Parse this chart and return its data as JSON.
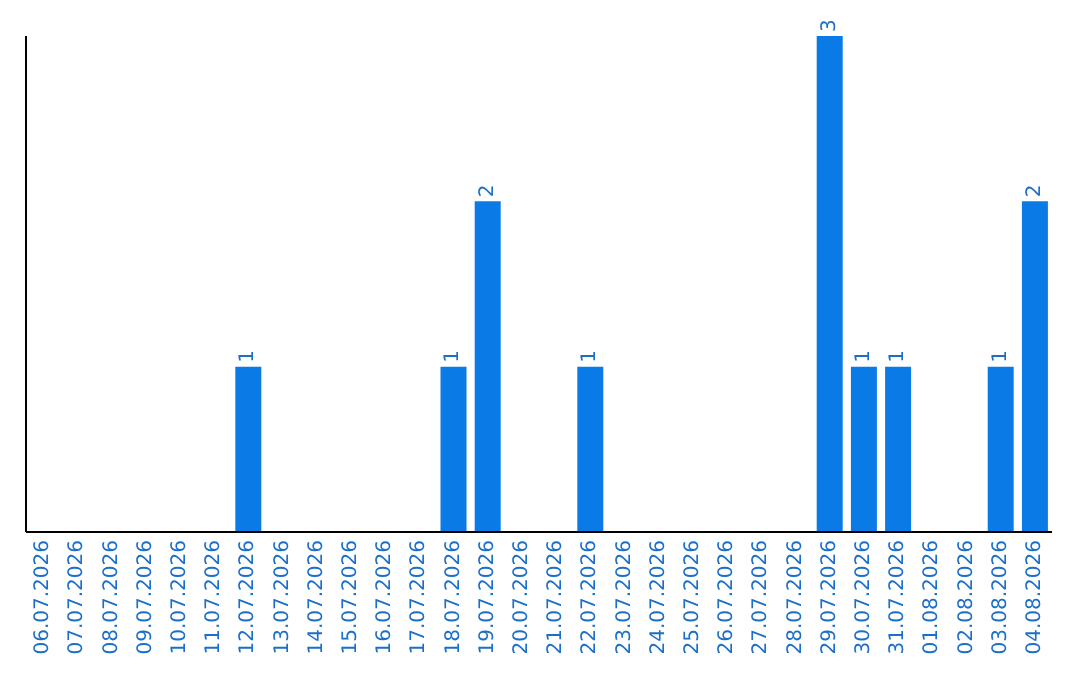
{
  "chart_data": {
    "type": "bar",
    "categories": [
      "06.07.2026",
      "07.07.2026",
      "08.07.2026",
      "09.07.2026",
      "10.07.2026",
      "11.07.2026",
      "12.07.2026",
      "13.07.2026",
      "14.07.2026",
      "15.07.2026",
      "16.07.2026",
      "17.07.2026",
      "18.07.2026",
      "19.07.2026",
      "20.07.2026",
      "21.07.2026",
      "22.07.2026",
      "23.07.2026",
      "24.07.2026",
      "25.07.2026",
      "26.07.2026",
      "27.07.2026",
      "28.07.2026",
      "29.07.2026",
      "30.07.2026",
      "31.07.2026",
      "01.08.2026",
      "02.08.2026",
      "03.08.2026",
      "04.08.2026"
    ],
    "values": [
      0,
      0,
      0,
      0,
      0,
      0,
      1,
      0,
      0,
      0,
      0,
      0,
      1,
      2,
      0,
      0,
      1,
      0,
      0,
      0,
      0,
      0,
      0,
      3,
      1,
      1,
      0,
      0,
      1,
      2
    ],
    "value_labels": [
      null,
      null,
      null,
      null,
      null,
      null,
      "1",
      null,
      null,
      null,
      null,
      null,
      "1",
      "2",
      null,
      null,
      "1",
      null,
      null,
      null,
      null,
      null,
      null,
      "3",
      "1",
      "1",
      null,
      null,
      "1",
      "2"
    ],
    "color": "#0a7be6"
  }
}
